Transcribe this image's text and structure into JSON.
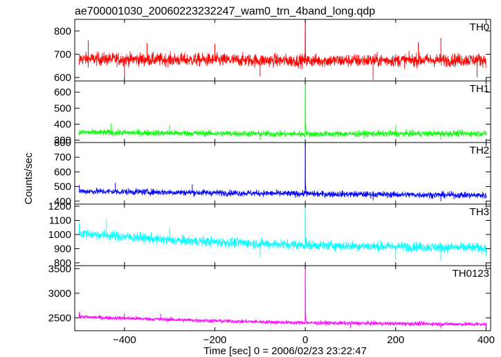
{
  "chart_data": {
    "type": "line",
    "title": "ae700001030_20060223232247_wam0_trn_4band_long.qdp",
    "xlabel": "Time [sec] 0 = 2006/02/23 23:22:47",
    "ylabel": "Counts/sec",
    "xlim": [
      -510,
      410
    ],
    "x_ticks": [
      -400,
      -200,
      0,
      200,
      400
    ],
    "x_tick_labels": [
      "−400",
      "−200",
      "0",
      "200",
      "400"
    ],
    "grid": false,
    "panels": [
      {
        "name": "TH0",
        "color": "#ff0000",
        "ylim": [
          585,
          850
        ],
        "y_ticks": [
          600,
          700,
          800
        ],
        "baseline": [
          [
            -500,
            680
          ],
          [
            0,
            672
          ],
          [
            400,
            676
          ]
        ],
        "noise": 26,
        "peak": [
          0,
          850
        ],
        "points": [
          [
            -500,
            655
          ],
          [
            -480,
            760
          ],
          [
            -400,
            600
          ],
          [
            -350,
            748
          ],
          [
            -200,
            745
          ],
          [
            -100,
            605
          ],
          [
            0,
            850
          ],
          [
            150,
            590
          ],
          [
            250,
            752
          ],
          [
            300,
            770
          ],
          [
            380,
            600
          ]
        ]
      },
      {
        "name": "TH1",
        "color": "#00ff00",
        "ylim": [
          285,
          670
        ],
        "y_ticks": [
          300,
          400,
          500,
          600
        ],
        "baseline": [
          [
            -500,
            348
          ],
          [
            0,
            338
          ],
          [
            400,
            342
          ]
        ],
        "noise": 18,
        "peak": [
          0,
          670
        ],
        "points": [
          [
            -500,
            330
          ],
          [
            -430,
            405
          ],
          [
            -300,
            395
          ],
          [
            -100,
            300
          ],
          [
            0,
            670
          ],
          [
            200,
            395
          ],
          [
            300,
            305
          ],
          [
            400,
            330
          ]
        ]
      },
      {
        "name": "TH2",
        "color": "#0000ff",
        "ylim": [
          380,
          800
        ],
        "y_ticks": [
          400,
          500,
          600,
          700,
          800
        ],
        "baseline": [
          [
            -500,
            468
          ],
          [
            0,
            450
          ],
          [
            400,
            440
          ]
        ],
        "noise": 20,
        "peak": [
          0,
          800
        ],
        "points": [
          [
            -500,
            510
          ],
          [
            -420,
            525
          ],
          [
            -250,
            515
          ],
          [
            0,
            800
          ],
          [
            150,
            405
          ],
          [
            300,
            400
          ],
          [
            400,
            420
          ]
        ]
      },
      {
        "name": "TH3",
        "color": "#00ffff",
        "ylim": [
          780,
          1215
        ],
        "y_ticks": [
          800,
          900,
          1000,
          1100,
          1200
        ],
        "baseline": [
          [
            -500,
            1010
          ],
          [
            -300,
            960
          ],
          [
            0,
            925
          ],
          [
            400,
            905
          ]
        ],
        "noise": 32,
        "peak": [
          0,
          1215
        ],
        "points": [
          [
            -500,
            1080
          ],
          [
            -440,
            1110
          ],
          [
            -300,
            1050
          ],
          [
            -100,
            840
          ],
          [
            0,
            1215
          ],
          [
            200,
            820
          ],
          [
            300,
            815
          ],
          [
            400,
            850
          ]
        ]
      },
      {
        "name": "TH0123",
        "color": "#ff00ff",
        "ylim": [
          2240,
          3560
        ],
        "y_ticks": [
          2500,
          3000,
          3500
        ],
        "baseline": [
          [
            -500,
            2520
          ],
          [
            -200,
            2440
          ],
          [
            0,
            2400
          ],
          [
            400,
            2370
          ]
        ],
        "noise": 38,
        "peak": [
          0,
          3560
        ],
        "points": [
          [
            -500,
            2620
          ],
          [
            -400,
            2600
          ],
          [
            -320,
            2590
          ],
          [
            0,
            3560
          ],
          [
            100,
            2300
          ],
          [
            300,
            2290
          ],
          [
            400,
            2310
          ]
        ]
      }
    ]
  }
}
